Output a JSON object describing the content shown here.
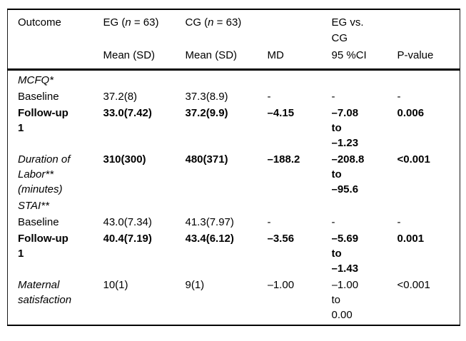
{
  "page": {
    "background_color": "#ffffff",
    "text_color": "#000000",
    "rule_color": "#000000"
  },
  "table": {
    "header": {
      "outcome": "Outcome",
      "eg": {
        "pre": "EG (",
        "n": "n",
        "post": " = 63)"
      },
      "cg": {
        "pre": "CG (",
        "n": "n",
        "post": " = 63)"
      },
      "eg_vs_cg": "EG vs.\nCG",
      "sub": {
        "eg_mean": "Mean (SD)",
        "cg_mean": "Mean (SD)",
        "md": "MD",
        "ci": "95 %CI",
        "p": "P-value"
      }
    },
    "rows": [
      {
        "outcome": "MCFQ*",
        "eg": "",
        "cg": "",
        "md": "",
        "ci": "",
        "p": ""
      },
      {
        "outcome": "Baseline",
        "eg": "37.2(8)",
        "cg": "37.3(8.9)",
        "md": "-",
        "ci": "-",
        "p": "-"
      },
      {
        "outcome": "Follow-up\n1",
        "eg": "33.0(7.42)",
        "cg": "37.2(9.9)",
        "md": "–4.15",
        "ci": "–7.08\nto\n–1.23",
        "p": "0.006"
      },
      {
        "outcome": "Duration of\nLabor**\n(minutes)",
        "eg": "310(300)",
        "cg": "480(371)",
        "md": "–188.2",
        "ci": "–208.8\nto\n–95.6",
        "p": "<0.001"
      },
      {
        "outcome": "STAI**",
        "eg": "",
        "cg": "",
        "md": "",
        "ci": "",
        "p": ""
      },
      {
        "outcome": "Baseline",
        "eg": "43.0(7.34)",
        "cg": "41.3(7.97)",
        "md": "-",
        "ci": "-",
        "p": "-"
      },
      {
        "outcome": "Follow-up\n1",
        "eg": "40.4(7.19)",
        "cg": "43.4(6.12)",
        "md": "–3.56",
        "ci": "–5.69\nto\n–1.43",
        "p": "0.001"
      },
      {
        "outcome": "Maternal\nsatisfaction",
        "eg": "10(1)",
        "cg": "9(1)",
        "md": "–1.00",
        "ci": "–1.00\nto\n0.00",
        "p": "<0.001"
      }
    ]
  }
}
